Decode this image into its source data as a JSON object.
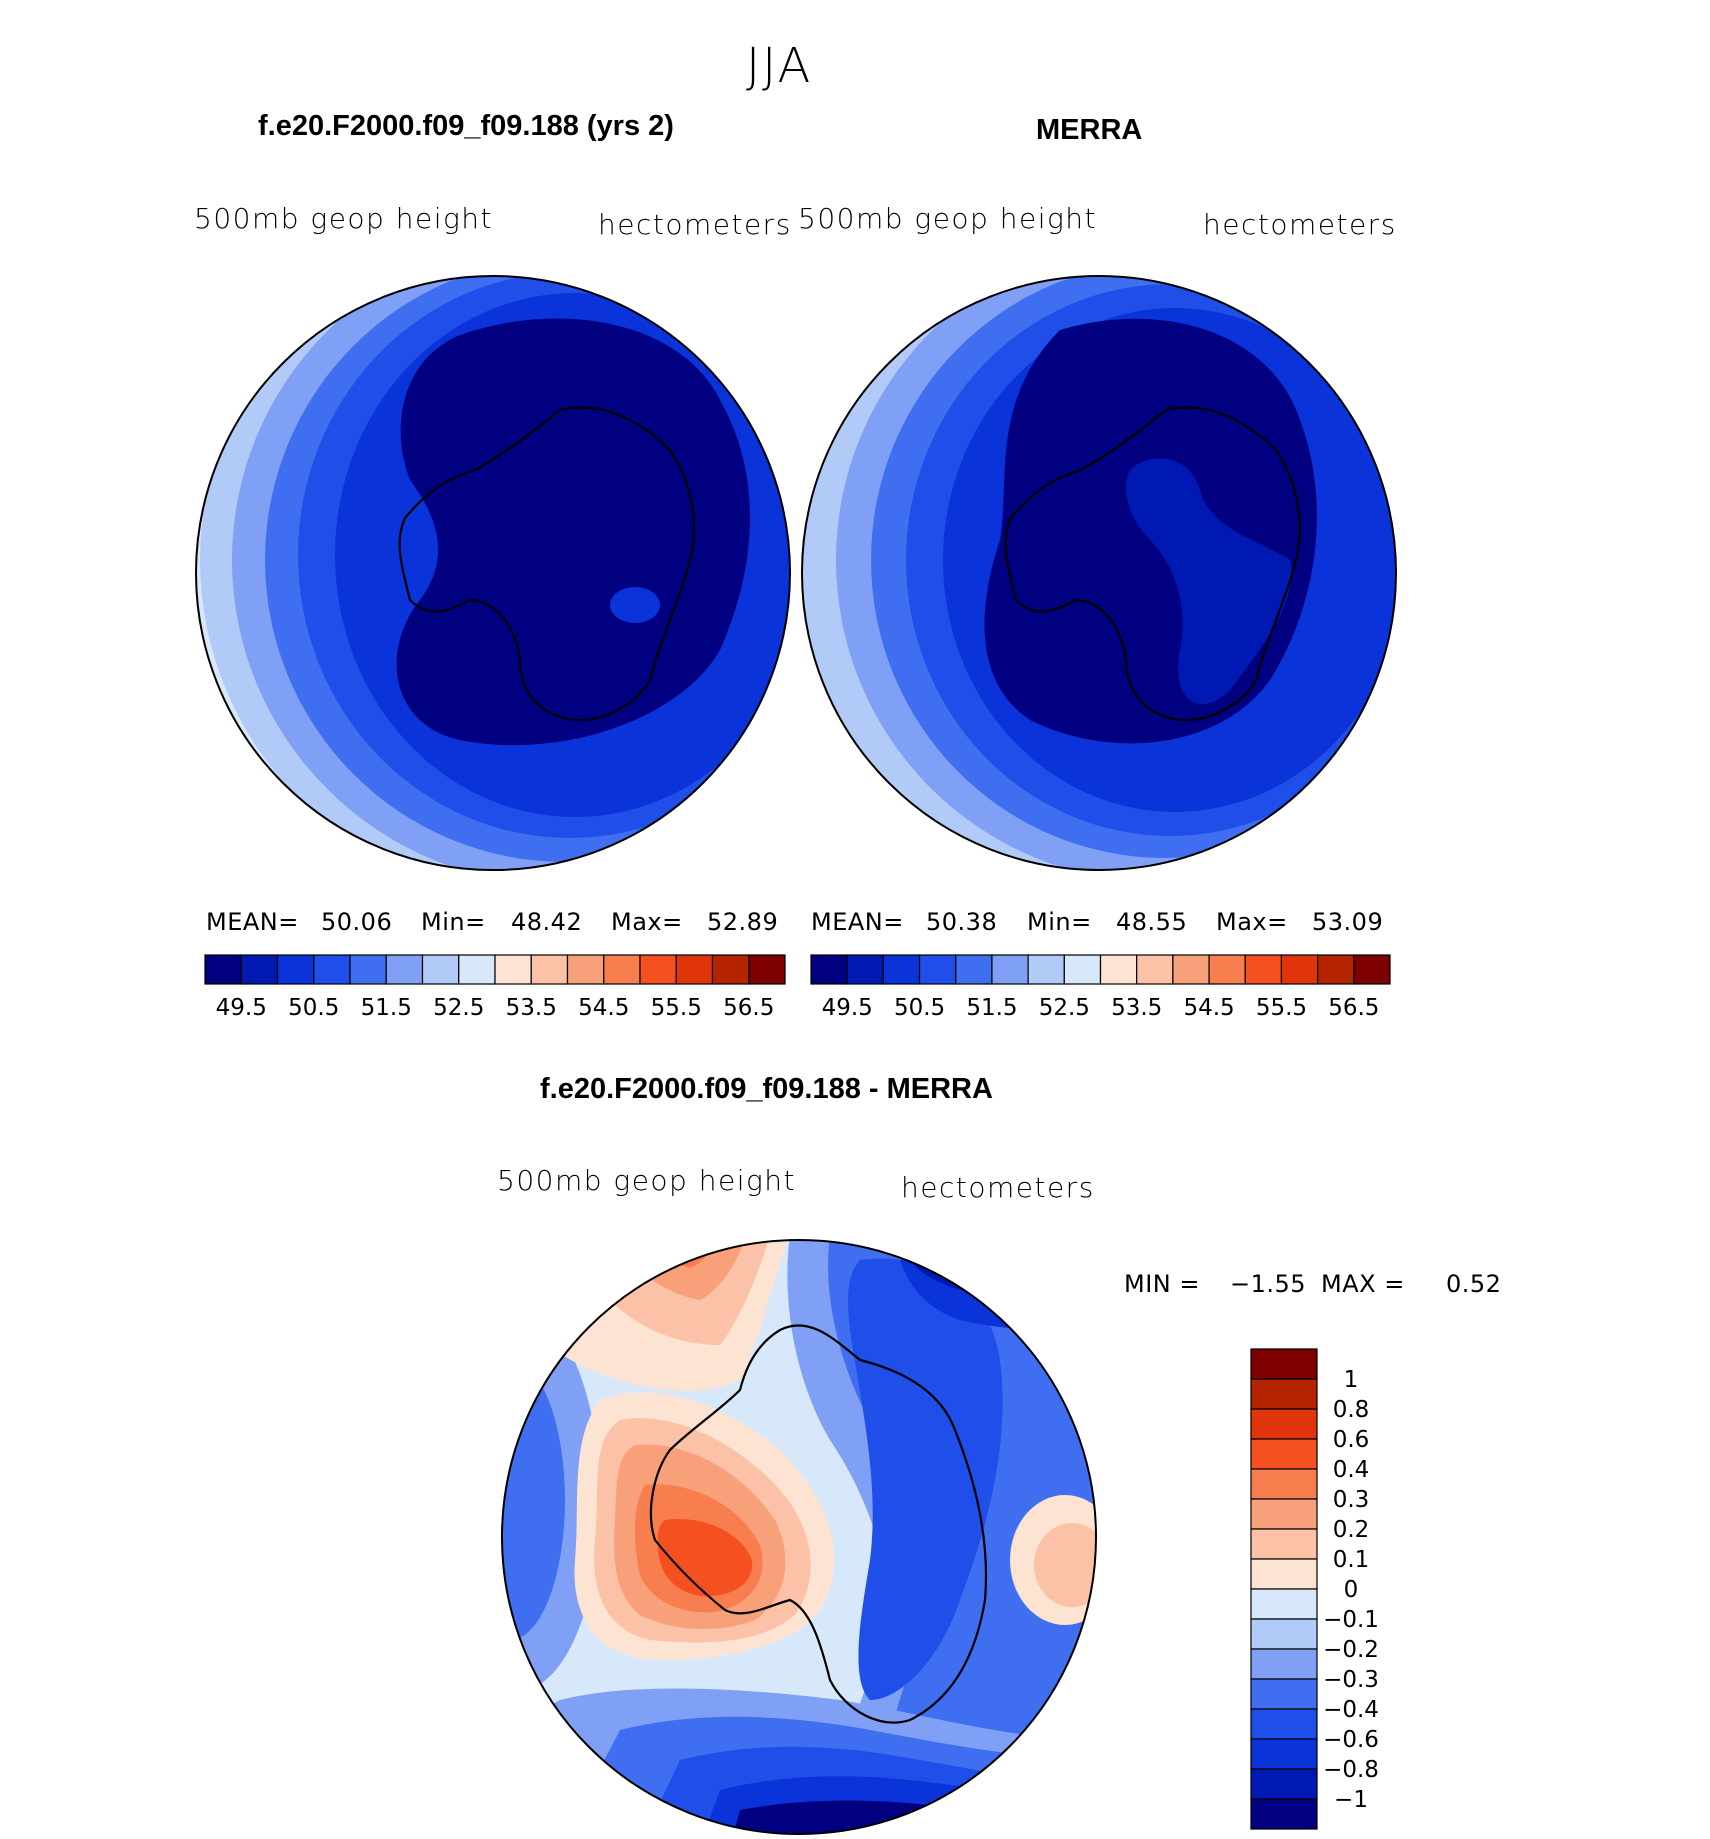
{
  "season_title": "JJA",
  "panels": [
    {
      "title": "f.e20.F2000.f09_f09.188 (yrs 2)",
      "left_label": "500mb geop height",
      "right_label": "hectometers",
      "mean_label": "MEAN=",
      "mean_value": "50.06",
      "min_label": "Min=",
      "min_value": "48.42",
      "max_label": "Max=",
      "max_value": "52.89"
    },
    {
      "title": "MERRA",
      "left_label": "500mb geop height",
      "right_label": "hectometers",
      "mean_label": "MEAN=",
      "mean_value": "50.38",
      "min_label": "Min=",
      "min_value": "48.55",
      "max_label": "Max=",
      "max_value": "53.09"
    }
  ],
  "diff_panel": {
    "title": "f.e20.F2000.f09_f09.188 - MERRA",
    "left_label": "500mb geop height",
    "right_label": "hectometers",
    "min_label": "MIN =",
    "min_value": "−1.55",
    "max_label": "MAX =",
    "max_value": "0.52"
  },
  "chart_data": [
    {
      "type": "heatmap",
      "title": "f.e20.F2000.f09_f09.188 (yrs 2)",
      "variable": "500mb geop height",
      "units": "hectometers",
      "projection": "south polar stereographic",
      "stats": {
        "mean": 50.06,
        "min": 48.42,
        "max": 52.89
      },
      "colorbar_ticks": [
        "49.5",
        "50.5",
        "51.5",
        "52.5",
        "53.5",
        "54.5",
        "55.5",
        "56.5"
      ],
      "levels": [
        49.5,
        50.0,
        50.5,
        51.0,
        51.5,
        52.0,
        52.5,
        53.0,
        53.5,
        54.0,
        54.5,
        55.0,
        55.5,
        56.0,
        56.5
      ]
    },
    {
      "type": "heatmap",
      "title": "MERRA",
      "variable": "500mb geop height",
      "units": "hectometers",
      "projection": "south polar stereographic",
      "stats": {
        "mean": 50.38,
        "min": 48.55,
        "max": 53.09
      },
      "colorbar_ticks": [
        "49.5",
        "50.5",
        "51.5",
        "52.5",
        "53.5",
        "54.5",
        "55.5",
        "56.5"
      ],
      "levels": [
        49.5,
        50.0,
        50.5,
        51.0,
        51.5,
        52.0,
        52.5,
        53.0,
        53.5,
        54.0,
        54.5,
        55.0,
        55.5,
        56.0,
        56.5
      ]
    },
    {
      "type": "heatmap",
      "title": "f.e20.F2000.f09_f09.188 - MERRA",
      "variable": "500mb geop height",
      "units": "hectometers",
      "projection": "south polar stereographic",
      "stats": {
        "min": -1.55,
        "max": 0.52
      },
      "colorbar_ticks": [
        "1",
        "0.8",
        "0.6",
        "0.4",
        "0.3",
        "0.2",
        "0.1",
        "0",
        "−0.1",
        "−0.2",
        "−0.3",
        "−0.4",
        "−0.6",
        "−0.8",
        "−1"
      ],
      "levels": [
        -1,
        -0.8,
        -0.6,
        -0.4,
        -0.3,
        -0.2,
        -0.1,
        0,
        0.1,
        0.2,
        0.3,
        0.4,
        0.6,
        0.8,
        1
      ]
    }
  ],
  "palette": [
    "#000080",
    "#0019b3",
    "#0a33d9",
    "#1f4fe8",
    "#3f6ff0",
    "#7fa0f5",
    "#b2caf8",
    "#d8e8fb",
    "#fde3d1",
    "#fcc2a7",
    "#f8a07a",
    "#f87e50",
    "#f55020",
    "#e0340c",
    "#b52400",
    "#7f0000"
  ]
}
